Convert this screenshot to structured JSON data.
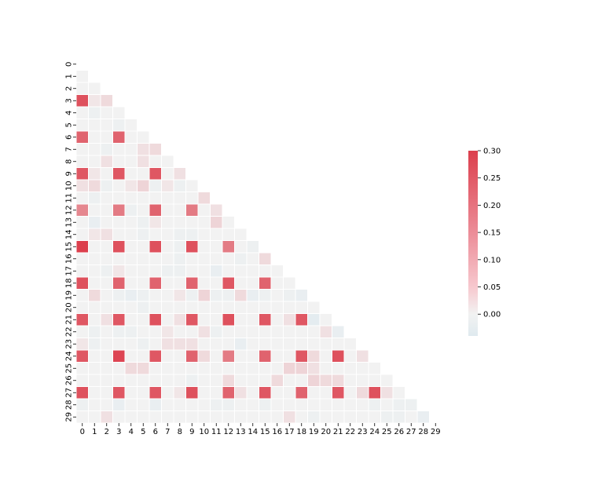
{
  "chart_data": {
    "type": "heatmap",
    "title": "",
    "xlabel": "",
    "ylabel": "",
    "mask": "upper-triangle-including-diagonal",
    "x_tick_labels": [
      "0",
      "1",
      "2",
      "3",
      "4",
      "5",
      "6",
      "7",
      "8",
      "9",
      "10",
      "11",
      "12",
      "13",
      "14",
      "15",
      "16",
      "17",
      "18",
      "19",
      "20",
      "21",
      "22",
      "23",
      "24",
      "25",
      "26",
      "27",
      "28",
      "29"
    ],
    "y_tick_labels": [
      "0",
      "1",
      "2",
      "3",
      "4",
      "5",
      "6",
      "7",
      "8",
      "9",
      "10",
      "11",
      "12",
      "13",
      "14",
      "15",
      "16",
      "17",
      "18",
      "19",
      "20",
      "21",
      "22",
      "23",
      "24",
      "25",
      "26",
      "27",
      "28",
      "29"
    ],
    "colorbar": {
      "vmin": -0.04,
      "vmax": 0.3,
      "center": 0,
      "tick_labels": [
        "0.30",
        "0.25",
        "0.20",
        "0.15",
        "0.10",
        "0.05",
        "0.00"
      ],
      "tick_values": [
        0.3,
        0.25,
        0.2,
        0.15,
        0.1,
        0.05,
        0.0
      ],
      "negative_color": "#dfeaef",
      "center_color": "#f2f2f2",
      "positive_color": "#dc3f4d"
    },
    "values": [
      [],
      [
        0.0
      ],
      [
        0.0,
        0.0
      ],
      [
        0.27,
        0.02,
        0.04
      ],
      [
        0.0,
        -0.01,
        0.0,
        0.0
      ],
      [
        0.0,
        0.0,
        0.0,
        -0.01,
        0.0
      ],
      [
        0.24,
        0.0,
        0.0,
        0.24,
        0.0,
        0.0
      ],
      [
        0.0,
        0.0,
        -0.01,
        0.0,
        0.0,
        0.03,
        0.04
      ],
      [
        0.0,
        0.0,
        0.03,
        0.0,
        0.0,
        0.03,
        0.0,
        0.0
      ],
      [
        0.26,
        0.02,
        0.0,
        0.26,
        0.0,
        0.0,
        0.26,
        0.0,
        0.03
      ],
      [
        0.03,
        0.04,
        -0.01,
        0.0,
        0.02,
        0.05,
        -0.01,
        0.02,
        -0.01,
        0.0
      ],
      [
        0.0,
        -0.01,
        0.0,
        0.0,
        0.0,
        0.0,
        0.0,
        0.0,
        0.0,
        0.0,
        0.04
      ],
      [
        0.18,
        0.0,
        0.0,
        0.2,
        -0.01,
        0.0,
        0.24,
        0.0,
        0.0,
        0.2,
        0.0,
        0.03
      ],
      [
        0.0,
        -0.02,
        0.0,
        0.0,
        0.0,
        -0.01,
        0.02,
        0.0,
        0.0,
        0.0,
        0.0,
        0.05,
        0.0
      ],
      [
        0.0,
        0.02,
        0.03,
        0.0,
        0.0,
        -0.01,
        0.0,
        0.0,
        -0.01,
        -0.01,
        0.0,
        0.0,
        0.0,
        0.0
      ],
      [
        0.3,
        0.0,
        0.0,
        0.27,
        0.0,
        0.0,
        0.27,
        0.0,
        -0.01,
        0.27,
        0.0,
        0.0,
        0.2,
        0.0,
        -0.01
      ],
      [
        0.0,
        0.0,
        0.0,
        0.0,
        0.0,
        0.0,
        0.0,
        0.0,
        -0.01,
        0.0,
        0.0,
        0.0,
        0.0,
        -0.01,
        0.0,
        0.04
      ],
      [
        0.0,
        0.0,
        -0.01,
        0.02,
        0.0,
        0.0,
        0.0,
        -0.01,
        -0.01,
        0.0,
        0.0,
        -0.02,
        0.0,
        0.0,
        0.0,
        0.0,
        0.0
      ],
      [
        0.27,
        0.0,
        0.0,
        0.24,
        0.0,
        0.0,
        0.24,
        0.0,
        0.0,
        0.24,
        0.0,
        0.0,
        0.26,
        0.0,
        0.0,
        0.24,
        0.0,
        0.0
      ],
      [
        0.0,
        0.04,
        0.0,
        -0.01,
        -0.02,
        -0.01,
        0.0,
        0.0,
        0.02,
        -0.01,
        0.05,
        -0.01,
        -0.01,
        0.04,
        -0.02,
        -0.01,
        0.0,
        -0.01,
        -0.02
      ],
      [
        0.0,
        0.0,
        0.0,
        0.0,
        0.0,
        -0.01,
        0.0,
        0.0,
        0.0,
        0.0,
        0.0,
        0.0,
        0.0,
        0.0,
        0.0,
        0.0,
        0.0,
        0.0,
        0.0,
        0.0
      ],
      [
        0.26,
        0.0,
        0.03,
        0.26,
        0.0,
        0.0,
        0.27,
        0.0,
        0.03,
        0.26,
        0.0,
        0.0,
        0.27,
        0.0,
        0.0,
        0.26,
        0.0,
        0.03,
        0.26,
        -0.03,
        0.0
      ],
      [
        0.0,
        -0.01,
        0.0,
        -0.01,
        -0.01,
        0.0,
        0.0,
        0.02,
        0.0,
        0.0,
        0.03,
        -0.01,
        0.0,
        0.0,
        0.0,
        0.0,
        0.0,
        0.0,
        0.0,
        0.0,
        0.03,
        -0.02
      ],
      [
        0.02,
        -0.01,
        0.0,
        0.0,
        0.0,
        -0.01,
        0.0,
        0.03,
        0.03,
        0.03,
        0.0,
        0.0,
        0.0,
        -0.02,
        0.0,
        0.0,
        0.0,
        0.0,
        0.0,
        0.0,
        0.0,
        0.0,
        0.0
      ],
      [
        0.26,
        0.0,
        0.0,
        0.29,
        0.0,
        0.0,
        0.26,
        0.0,
        0.0,
        0.24,
        0.04,
        0.0,
        0.2,
        0.0,
        0.0,
        0.24,
        0.0,
        0.0,
        0.26,
        0.04,
        0.0,
        0.27,
        0.0,
        0.03
      ],
      [
        0.0,
        0.0,
        0.0,
        0.0,
        0.04,
        0.04,
        0.0,
        0.0,
        0.0,
        0.0,
        0.0,
        0.0,
        0.0,
        0.0,
        0.0,
        0.0,
        0.0,
        0.05,
        0.05,
        0.03,
        0.0,
        0.0,
        0.0,
        0.0,
        0.0
      ],
      [
        0.0,
        0.0,
        0.0,
        0.0,
        0.0,
        0.0,
        0.0,
        0.0,
        0.0,
        -0.01,
        0.0,
        0.0,
        0.04,
        0.0,
        0.0,
        0.0,
        0.04,
        0.0,
        0.0,
        0.05,
        0.04,
        0.04,
        0.0,
        0.0,
        0.0,
        0.0
      ],
      [
        0.27,
        0.0,
        0.0,
        0.26,
        0.0,
        0.0,
        0.26,
        0.0,
        0.02,
        0.27,
        0.0,
        0.0,
        0.24,
        0.03,
        0.0,
        0.26,
        0.0,
        0.0,
        0.24,
        0.0,
        0.0,
        0.26,
        0.0,
        0.04,
        0.27,
        0.03,
        0.0
      ],
      [
        -0.01,
        0.0,
        0.0,
        -0.02,
        0.0,
        0.0,
        -0.02,
        0.0,
        0.0,
        0.0,
        0.0,
        -0.01,
        -0.01,
        0.0,
        0.0,
        -0.01,
        0.0,
        0.0,
        0.0,
        0.0,
        0.0,
        0.0,
        0.0,
        0.0,
        -0.01,
        0.0,
        -0.01,
        -0.01
      ],
      [
        0.0,
        0.0,
        0.03,
        0.0,
        0.0,
        0.0,
        0.0,
        0.0,
        0.0,
        0.0,
        0.0,
        0.0,
        0.0,
        0.0,
        0.0,
        0.0,
        0.0,
        0.03,
        0.0,
        -0.01,
        0.0,
        0.0,
        0.0,
        0.0,
        0.0,
        -0.01,
        -0.01,
        0.0,
        -0.02
      ]
    ]
  }
}
